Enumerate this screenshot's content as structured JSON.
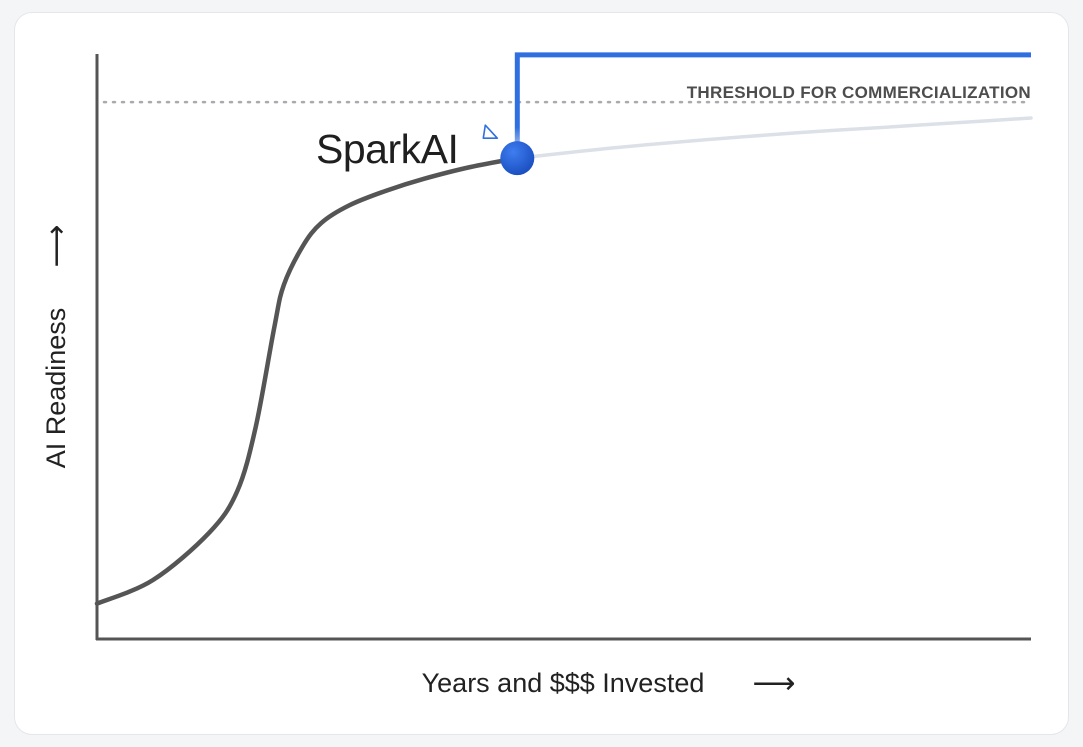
{
  "chart_data": {
    "type": "line",
    "xlabel": "Years and $$$ Invested",
    "ylabel": "AI Readiness",
    "x_arrow": "⟶",
    "y_arrow": "⟶",
    "threshold_label": "THRESHOLD FOR COMMERCIALIZATION",
    "marker_label": "SparkAI",
    "xlim": [
      0,
      100
    ],
    "ylim": [
      0,
      100
    ],
    "threshold_level": 91,
    "marker_x": 45,
    "grid": false,
    "series": [
      {
        "x": [
          0,
          6,
          12,
          15,
          17,
          19,
          20,
          22,
          24,
          27,
          31,
          35,
          40,
          45
        ],
        "y": [
          6,
          10,
          18,
          25,
          36,
          53,
          60,
          66.5,
          70.5,
          73.5,
          76,
          78,
          80,
          81.5
        ]
      },
      {
        "x": [
          45,
          55,
          65,
          75,
          85,
          95,
          100
        ],
        "y": [
          81.5,
          83.2,
          84.6,
          85.8,
          86.8,
          87.8,
          88.3
        ]
      },
      {
        "x": [
          45,
          45,
          100
        ],
        "y": [
          81.5,
          99,
          99
        ]
      }
    ],
    "colors": {
      "curve": "#555555",
      "projection": "#dce1e8",
      "accent": "#2f6fe0",
      "marker": "#1a52c6",
      "threshold": "#a8aaad",
      "text": "#222222",
      "threshold_text": "#4d4d4d"
    }
  }
}
